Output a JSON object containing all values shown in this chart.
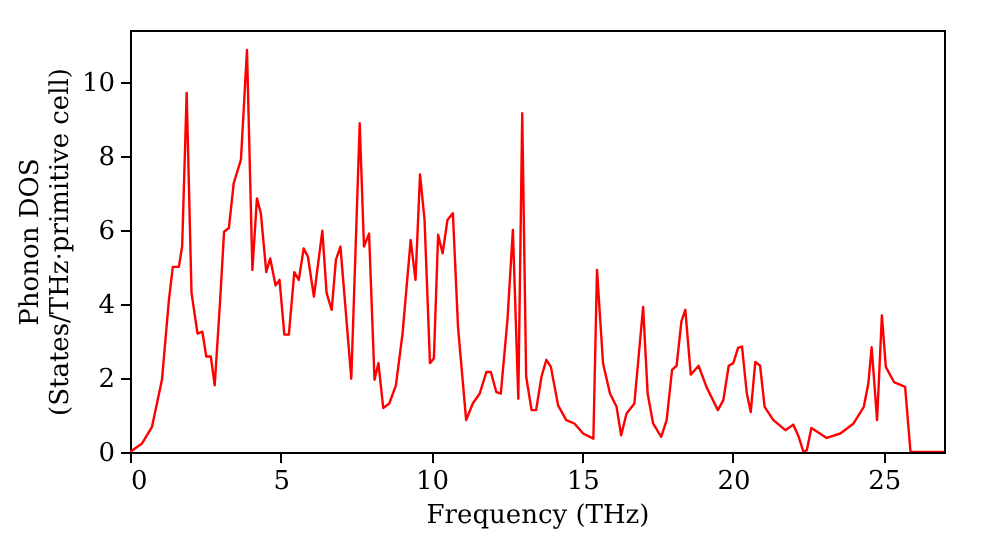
{
  "chart_data": {
    "type": "line",
    "xlabel": "Frequency (THz)",
    "ylabel": "Phonon DOS\n(States/THz·primitive cell)",
    "xlim": [
      0,
      27
    ],
    "ylim": [
      0,
      11.4
    ],
    "xticks": [
      0,
      5,
      10,
      15,
      20,
      25
    ],
    "yticks": [
      0,
      2,
      4,
      6,
      8,
      10
    ],
    "grid": false,
    "series": [
      {
        "color": "#ff0000",
        "x": [
          0,
          0.4,
          0.73,
          1.06,
          1.29,
          1.42,
          1.62,
          1.73,
          1.88,
          2.04,
          2.24,
          2.4,
          2.53,
          2.68,
          2.81,
          2.99,
          3.12,
          3.28,
          3.44,
          3.68,
          3.88,
          4.06,
          4.21,
          4.34,
          4.52,
          4.65,
          4.83,
          4.96,
          5.12,
          5.27,
          5.45,
          5.6,
          5.76,
          5.9,
          6.1,
          6.38,
          6.52,
          6.69,
          6.83,
          6.98,
          7.34,
          7.62,
          7.76,
          7.93,
          8.11,
          8.24,
          8.4,
          8.6,
          8.82,
          9.04,
          9.31,
          9.47,
          9.62,
          9.77,
          9.95,
          10.08,
          10.22,
          10.37,
          10.53,
          10.71,
          10.88,
          11.15,
          11.37,
          11.6,
          11.82,
          11.97,
          12.15,
          12.3,
          12.52,
          12.7,
          12.88,
          13.01,
          13.14,
          13.32,
          13.47,
          13.65,
          13.81,
          13.96,
          14.2,
          14.47,
          14.74,
          15.03,
          15.37,
          15.49,
          15.69,
          15.92,
          16.14,
          16.29,
          16.47,
          16.73,
          17.02,
          17.17,
          17.35,
          17.62,
          17.8,
          17.98,
          18.13,
          18.29,
          18.42,
          18.6,
          18.86,
          19.12,
          19.5,
          19.68,
          19.86,
          20.01,
          20.17,
          20.3,
          20.46,
          20.59,
          20.74,
          20.9,
          21.05,
          21.34,
          21.74,
          22.0,
          22.18,
          22.34,
          22.45,
          22.6,
          23.11,
          23.56,
          24.0,
          24.34,
          24.49,
          24.6,
          24.78,
          24.94,
          25.07,
          25.34,
          25.71,
          25.89,
          27.0
        ],
        "values": [
          0,
          0.23,
          0.68,
          1.95,
          4.1,
          5.0,
          5.0,
          5.55,
          9.7,
          4.3,
          3.2,
          3.25,
          2.58,
          2.58,
          1.8,
          4.1,
          5.95,
          6.05,
          7.26,
          7.9,
          10.86,
          4.92,
          6.85,
          6.45,
          4.86,
          5.23,
          4.5,
          4.65,
          3.17,
          3.17,
          4.86,
          4.65,
          5.5,
          5.28,
          4.2,
          5.98,
          4.3,
          3.84,
          5.19,
          5.55,
          1.98,
          8.88,
          5.55,
          5.9,
          1.95,
          2.4,
          1.19,
          1.31,
          1.8,
          3.2,
          5.73,
          4.65,
          7.5,
          6.27,
          2.4,
          2.53,
          5.87,
          5.37,
          6.27,
          6.45,
          3.38,
          0.86,
          1.31,
          1.58,
          2.16,
          2.16,
          1.62,
          1.58,
          3.57,
          6.0,
          1.44,
          9.15,
          2.04,
          1.13,
          1.13,
          2.04,
          2.49,
          2.3,
          1.26,
          0.86,
          0.77,
          0.5,
          0.36,
          4.92,
          2.4,
          1.58,
          1.22,
          0.45,
          1.04,
          1.31,
          3.92,
          1.58,
          0.77,
          0.41,
          0.86,
          2.22,
          2.33,
          3.53,
          3.84,
          2.09,
          2.33,
          1.76,
          1.13,
          1.4,
          2.33,
          2.4,
          2.81,
          2.85,
          1.58,
          1.08,
          2.43,
          2.33,
          1.22,
          0.86,
          0.59,
          0.74,
          0.41,
          0,
          0.05,
          0.65,
          0.38,
          0.5,
          0.77,
          1.22,
          1.85,
          2.83,
          0.86,
          3.69,
          2.3,
          1.89,
          1.76,
          0,
          0
        ]
      }
    ]
  }
}
